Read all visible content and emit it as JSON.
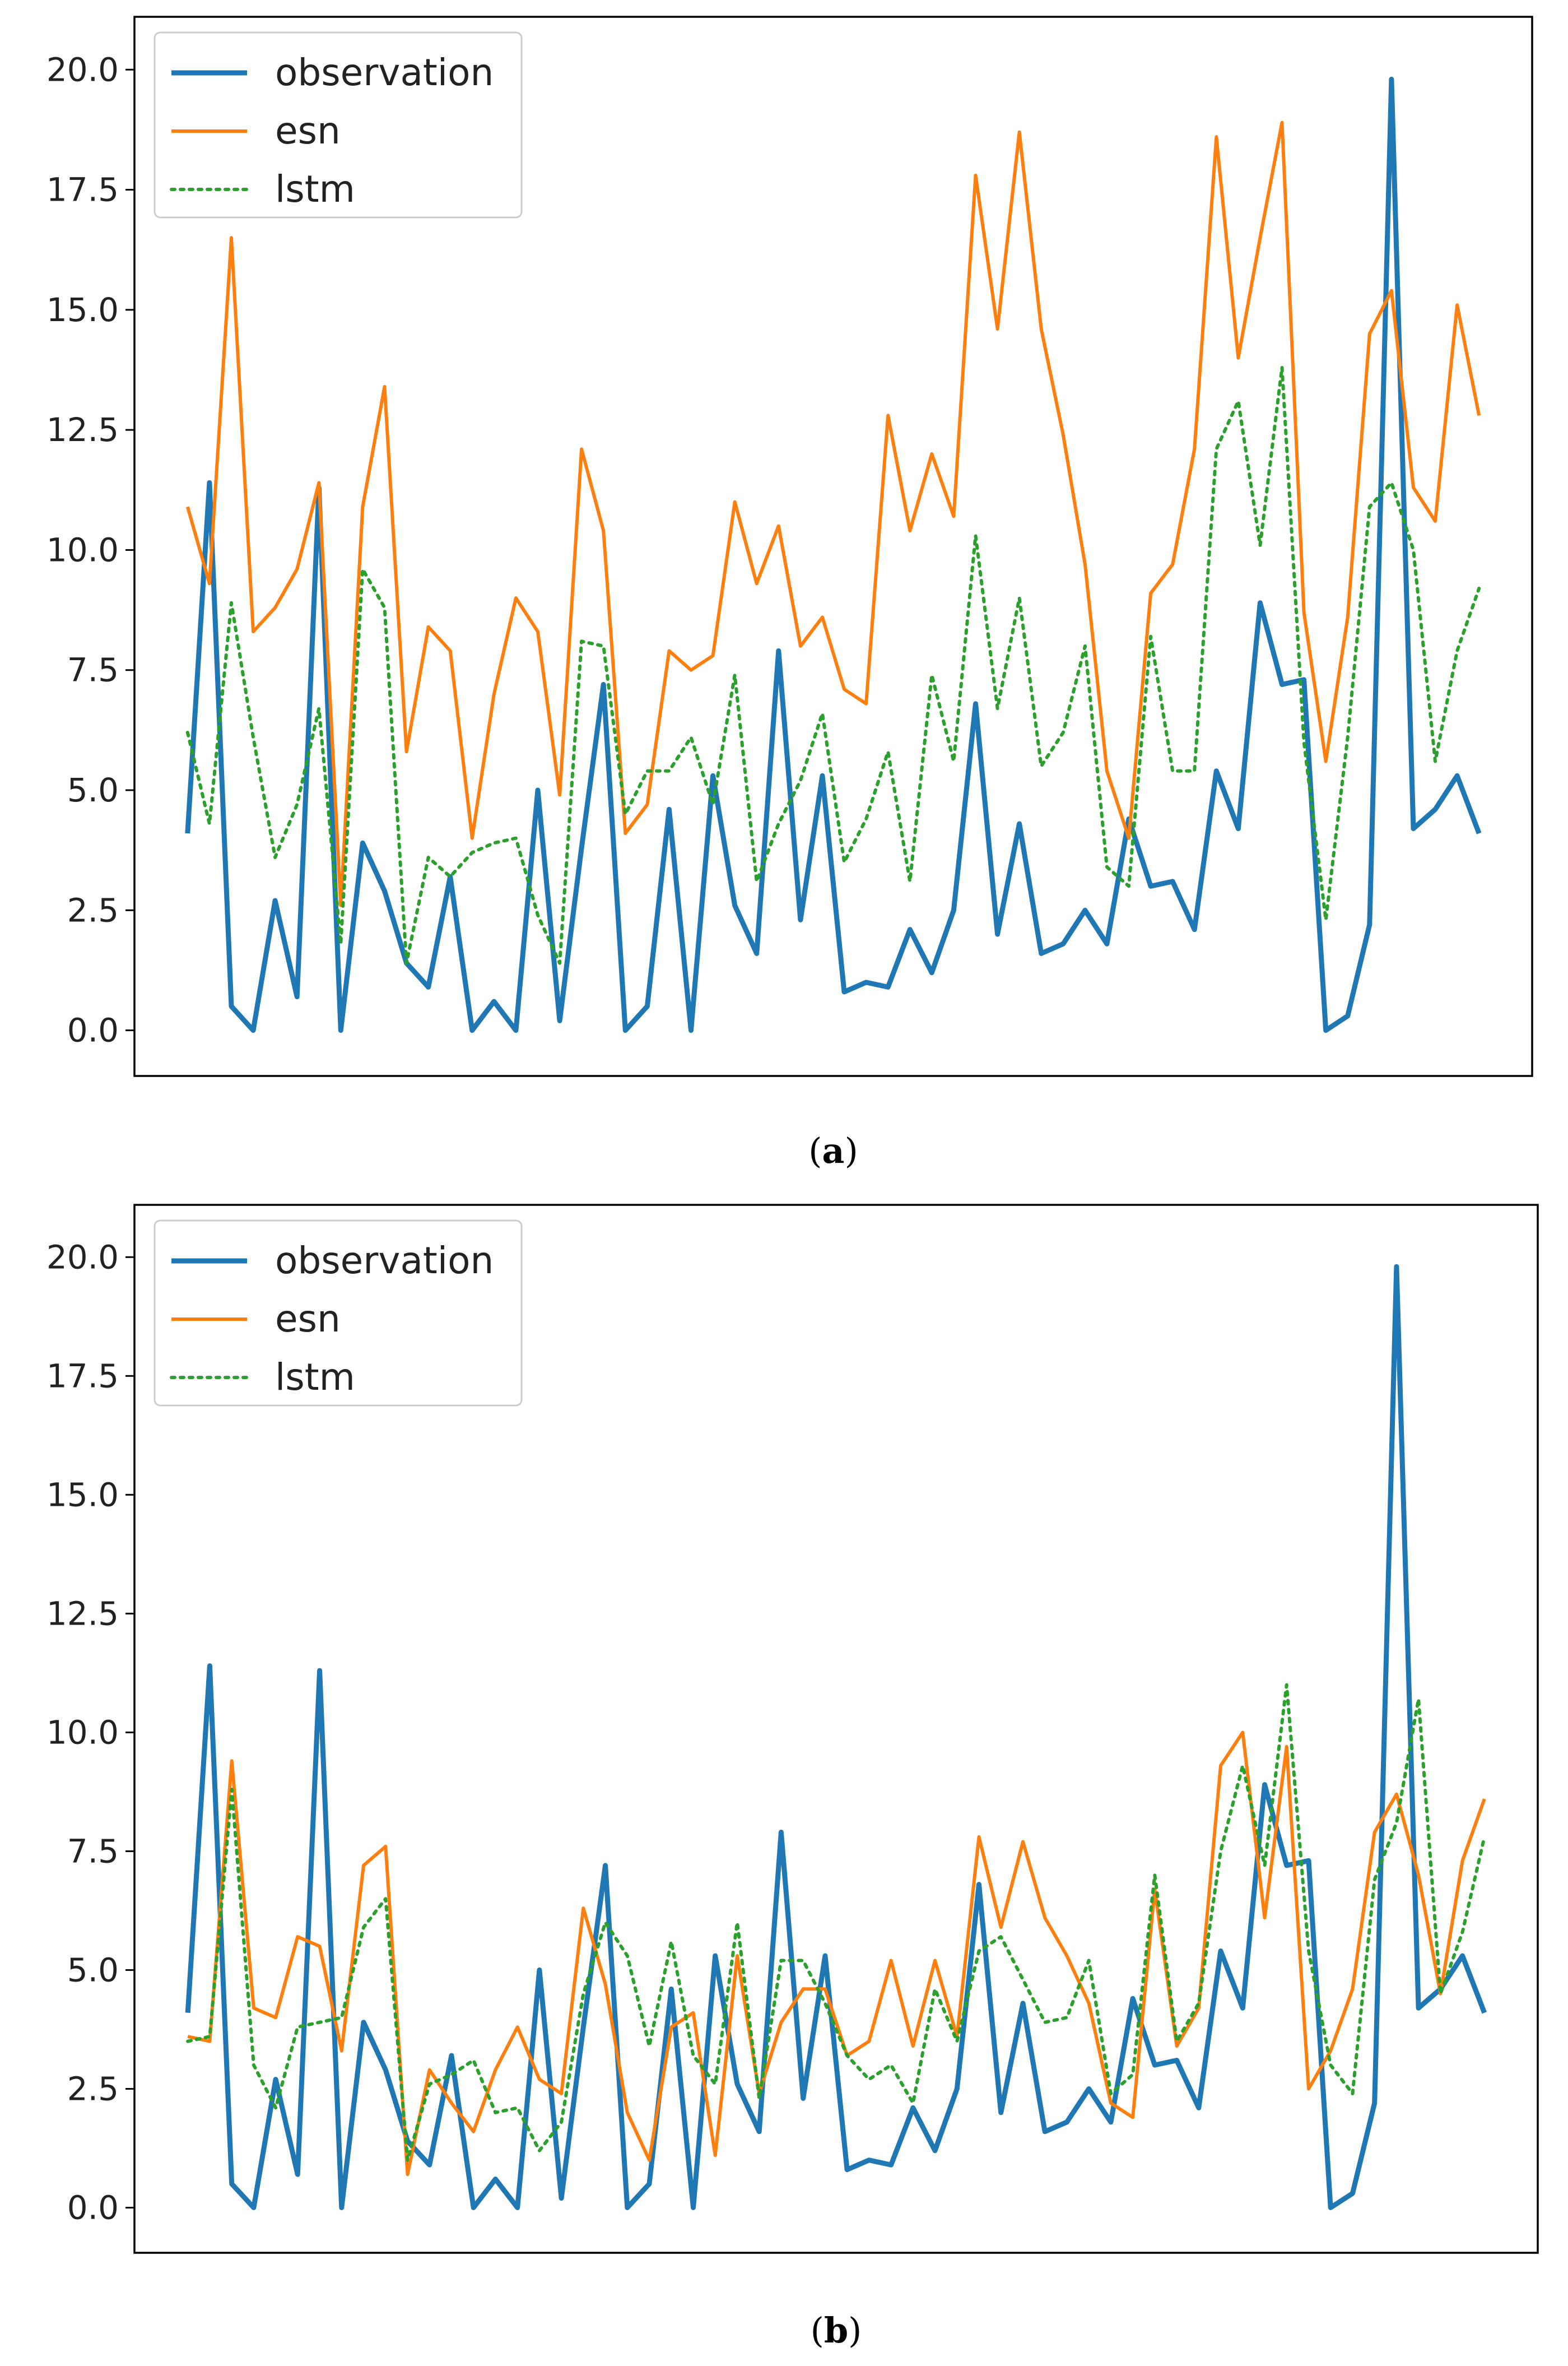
{
  "figure": {
    "captions": [
      "a",
      "b"
    ]
  },
  "chart_data": [
    {
      "panel": "a",
      "type": "line",
      "title": "",
      "xlabel": "",
      "ylabel": "",
      "ylim": [
        -0.95,
        21.1
      ],
      "yticks": [
        0.0,
        2.5,
        5.0,
        7.5,
        10.0,
        12.5,
        15.0,
        17.5,
        20.0
      ],
      "ytick_labels": [
        "0.0",
        "2.5",
        "5.0",
        "7.5",
        "10.0",
        "12.5",
        "15.0",
        "17.5",
        "20.0"
      ],
      "legend_position": "upper-left",
      "series": [
        {
          "name": "observation",
          "color": "#1f77b4",
          "style": "solid-thick",
          "values": [
            4.1,
            11.4,
            0.5,
            0.0,
            2.7,
            0.7,
            11.3,
            0.0,
            3.9,
            2.9,
            1.4,
            0.9,
            3.2,
            0.0,
            0.6,
            0.0,
            5.0,
            0.2,
            3.8,
            7.2,
            0.0,
            0.5,
            4.6,
            0.0,
            5.3,
            2.6,
            1.6,
            7.9,
            2.3,
            5.3,
            0.8,
            1.0,
            0.9,
            2.1,
            1.2,
            2.5,
            6.8,
            2.0,
            4.3,
            1.6,
            1.8,
            2.5,
            1.8,
            4.4,
            3.0,
            3.1,
            2.1,
            5.4,
            4.2,
            8.9,
            7.2,
            7.3,
            0.0,
            0.3,
            2.2,
            19.8,
            4.2,
            4.6,
            5.3,
            4.1
          ]
        },
        {
          "name": "esn",
          "color": "#ff7f0e",
          "style": "solid",
          "values": [
            10.9,
            9.3,
            16.5,
            8.3,
            8.8,
            9.6,
            11.4,
            2.6,
            10.9,
            13.4,
            5.8,
            8.4,
            7.9,
            4.0,
            7.0,
            9.0,
            8.3,
            4.9,
            12.1,
            10.4,
            4.1,
            4.7,
            7.9,
            7.5,
            7.8,
            11.0,
            9.3,
            10.5,
            8.0,
            8.6,
            7.1,
            6.8,
            12.8,
            10.4,
            12.0,
            10.7,
            17.8,
            14.6,
            18.7,
            14.6,
            12.4,
            9.7,
            5.4,
            4.0,
            9.1,
            9.7,
            12.1,
            18.6,
            14.0,
            16.5,
            18.9,
            8.7,
            5.6,
            8.6,
            14.5,
            15.4,
            11.3,
            10.6,
            15.1,
            12.8
          ]
        },
        {
          "name": "lstm",
          "color": "#2ca02c",
          "style": "dotted",
          "values": [
            6.2,
            4.3,
            8.9,
            6.1,
            3.6,
            4.7,
            6.7,
            1.8,
            9.6,
            8.8,
            1.4,
            3.6,
            3.2,
            3.7,
            3.9,
            4.0,
            2.4,
            1.4,
            8.1,
            8.0,
            4.5,
            5.4,
            5.4,
            6.1,
            4.7,
            7.4,
            3.1,
            4.3,
            5.2,
            6.6,
            3.5,
            4.4,
            5.8,
            3.1,
            7.4,
            5.6,
            10.3,
            6.7,
            9.0,
            5.5,
            6.2,
            8.0,
            3.4,
            3.0,
            8.2,
            5.4,
            5.4,
            12.1,
            13.1,
            10.1,
            13.8,
            6.0,
            2.3,
            6.1,
            10.9,
            11.4,
            10.0,
            5.6,
            7.9,
            9.2
          ]
        }
      ]
    },
    {
      "panel": "b",
      "type": "line",
      "title": "",
      "xlabel": "",
      "ylabel": "",
      "ylim": [
        -0.95,
        21.1
      ],
      "yticks": [
        0.0,
        2.5,
        5.0,
        7.5,
        10.0,
        12.5,
        15.0,
        17.5,
        20.0
      ],
      "ytick_labels": [
        "0.0",
        "2.5",
        "5.0",
        "7.5",
        "10.0",
        "12.5",
        "15.0",
        "17.5",
        "20.0"
      ],
      "legend_position": "upper-left",
      "series": [
        {
          "name": "observation",
          "color": "#1f77b4",
          "style": "solid-thick",
          "values": [
            4.1,
            11.4,
            0.5,
            0.0,
            2.7,
            0.7,
            11.3,
            0.0,
            3.9,
            2.9,
            1.4,
            0.9,
            3.2,
            0.0,
            0.6,
            0.0,
            5.0,
            0.2,
            3.8,
            7.2,
            0.0,
            0.5,
            4.6,
            0.0,
            5.3,
            2.6,
            1.6,
            7.9,
            2.3,
            5.3,
            0.8,
            1.0,
            0.9,
            2.1,
            1.2,
            2.5,
            6.8,
            2.0,
            4.3,
            1.6,
            1.8,
            2.5,
            1.8,
            4.4,
            3.0,
            3.1,
            2.1,
            5.4,
            4.2,
            8.9,
            7.2,
            7.3,
            0.0,
            0.3,
            2.2,
            19.8,
            4.2,
            4.6,
            5.3,
            4.1
          ]
        },
        {
          "name": "esn",
          "color": "#ff7f0e",
          "style": "solid",
          "values": [
            3.6,
            3.5,
            9.4,
            4.2,
            4.0,
            5.7,
            5.5,
            3.3,
            7.2,
            7.6,
            0.7,
            2.9,
            2.2,
            1.6,
            2.9,
            3.8,
            2.7,
            2.4,
            6.3,
            4.7,
            2.0,
            1.0,
            3.8,
            4.1,
            1.1,
            5.3,
            2.4,
            3.9,
            4.6,
            4.6,
            3.2,
            3.5,
            5.2,
            3.4,
            5.2,
            3.6,
            7.8,
            5.9,
            7.7,
            6.1,
            5.3,
            4.3,
            2.2,
            1.9,
            6.7,
            3.4,
            4.2,
            9.3,
            10.0,
            6.1,
            9.7,
            2.5,
            3.3,
            4.6,
            7.9,
            8.7,
            7.0,
            4.5,
            7.3,
            8.6
          ]
        },
        {
          "name": "lstm",
          "color": "#2ca02c",
          "style": "dotted",
          "values": [
            3.5,
            3.6,
            8.8,
            3.0,
            2.1,
            3.8,
            3.9,
            4.0,
            5.9,
            6.5,
            1.0,
            2.6,
            2.8,
            3.1,
            2.0,
            2.1,
            1.2,
            1.8,
            4.5,
            6.0,
            5.3,
            3.4,
            5.6,
            3.2,
            2.6,
            6.0,
            2.3,
            5.2,
            5.2,
            4.3,
            3.2,
            2.7,
            3.0,
            2.2,
            4.6,
            3.5,
            5.4,
            5.7,
            4.8,
            3.9,
            4.0,
            5.2,
            2.4,
            2.8,
            7.0,
            3.5,
            4.3,
            7.5,
            9.3,
            7.2,
            11.0,
            5.4,
            3.0,
            2.4,
            6.9,
            8.1,
            10.7,
            4.5,
            5.8,
            7.8
          ]
        }
      ]
    }
  ]
}
